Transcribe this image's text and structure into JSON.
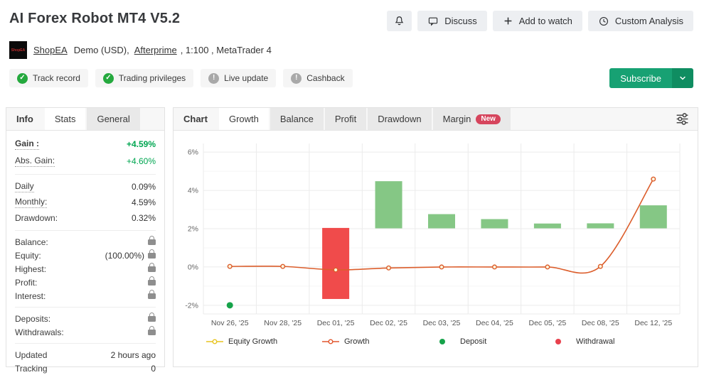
{
  "header": {
    "title": "AI Forex Robot MT4 V5.2"
  },
  "actions": {
    "discuss": "Discuss",
    "add_to_watch": "Add to watch",
    "custom_analysis": "Custom Analysis"
  },
  "account": {
    "logo_text": "ShopEA",
    "name_link": "ShopEA",
    "account_type": "Demo (USD),",
    "broker_link": "Afterprime",
    "leverage_platform": ", 1:100 , MetaTrader 4"
  },
  "verification_badges": [
    {
      "label": "Track record",
      "status": "ok"
    },
    {
      "label": "Trading privileges",
      "status": "ok"
    },
    {
      "label": "Live update",
      "status": "neutral"
    },
    {
      "label": "Cashback",
      "status": "neutral"
    }
  ],
  "subscribe": {
    "label": "Subscribe"
  },
  "stats_panel": {
    "tabs": [
      {
        "label": "Info"
      },
      {
        "label": "Stats",
        "active": true
      },
      {
        "label": "General"
      }
    ],
    "groups": [
      {
        "rows": [
          {
            "label": "Gain :",
            "value": "+4.59%",
            "bold": true,
            "value_bold": true,
            "tooltip": true,
            "value_color": "#00a651"
          },
          {
            "label": "Abs. Gain:",
            "value": "+4.60%",
            "tooltip": true,
            "value_color": "#00a651"
          }
        ]
      },
      {
        "rows": [
          {
            "label": "Daily",
            "value": "0.09%",
            "tooltip": true
          },
          {
            "label": "Monthly:",
            "value": "4.59%",
            "tooltip": true
          },
          {
            "label": "Drawdown:",
            "value": "0.32%"
          }
        ]
      },
      {
        "rows": [
          {
            "label": "Balance:",
            "locked": true
          },
          {
            "label": "Equity:",
            "value": "(100.00%)",
            "locked": true
          },
          {
            "label": "Highest:",
            "locked": true
          },
          {
            "label": "Profit:",
            "locked": true
          },
          {
            "label": "Interest:",
            "locked": true
          }
        ]
      },
      {
        "rows": [
          {
            "label": "Deposits:",
            "locked": true
          },
          {
            "label": "Withdrawals:",
            "locked": true
          }
        ]
      },
      {
        "rows": [
          {
            "label": "Updated",
            "value": "2 hours ago"
          },
          {
            "label": "Tracking",
            "value": "0"
          }
        ]
      }
    ]
  },
  "chart_panel": {
    "tabs": [
      {
        "label": "Chart"
      },
      {
        "label": "Growth",
        "active": true
      },
      {
        "label": "Balance"
      },
      {
        "label": "Profit"
      },
      {
        "label": "Drawdown"
      },
      {
        "label": "Margin",
        "badge": "New"
      }
    ]
  },
  "chart_data": {
    "type": "bar+line",
    "title": "Growth",
    "categories": [
      "Nov 26, '25",
      "Nov 28, '25",
      "Dec 01, '25",
      "Dec 02, '25",
      "Dec 03, '25",
      "Dec 04, '25",
      "Dec 05, '25",
      "Dec 08, '25",
      "Dec 12, '25"
    ],
    "ylim": [
      -2.45,
      6.45
    ],
    "y_ticks_major": [
      6,
      4,
      2,
      0,
      -2
    ],
    "y_ticks_minor": [
      5,
      3,
      1,
      -1
    ],
    "y_tick_suffix": "%",
    "grid": true,
    "bars": [
      {
        "category": "Dec 01, '25",
        "from": -1.67,
        "to": 2.04,
        "kind": "loss"
      },
      {
        "category": "Dec 02, '25",
        "from": 2.02,
        "to": 4.48,
        "kind": "gain"
      },
      {
        "category": "Dec 03, '25",
        "from": 2.02,
        "to": 2.76,
        "kind": "gain"
      },
      {
        "category": "Dec 04, '25",
        "from": 2.02,
        "to": 2.5,
        "kind": "gain"
      },
      {
        "category": "Dec 05, '25",
        "from": 2.02,
        "to": 2.27,
        "kind": "gain"
      },
      {
        "category": "Dec 08, '25",
        "from": 2.02,
        "to": 2.28,
        "kind": "gain"
      },
      {
        "category": "Dec 12, '25",
        "from": 2.02,
        "to": 3.22,
        "kind": "gain"
      }
    ],
    "series": [
      {
        "name": "Growth",
        "type": "line",
        "values": [
          0.03,
          0.03,
          -0.15,
          -0.05,
          0.0,
          0.0,
          0.0,
          0.03,
          4.59
        ]
      },
      {
        "name": "Equity Growth",
        "type": "line",
        "overlaps_growth": true
      }
    ],
    "deposit_markers": [
      {
        "category": "Nov 26, '25",
        "value": -2.0
      }
    ],
    "legend_position": "bottom",
    "legend": [
      {
        "label": "Equity Growth",
        "marker": "line",
        "color": "#e8c420"
      },
      {
        "label": "Growth",
        "marker": "line",
        "color": "#e2572e"
      },
      {
        "label": "Deposit",
        "marker": "dot",
        "color": "#16a34a"
      },
      {
        "label": "Withdrawal",
        "marker": "dot",
        "color": "#e8414d"
      }
    ],
    "colors": {
      "gain_bar": "#85c785",
      "loss_bar": "#f04b4b",
      "growth_line": "#dc5e2c",
      "equity_line": "#e8c420",
      "deposit": "#16a34a",
      "grid_major": "#ebebeb",
      "grid_minor": "#f5f5f5",
      "tick_text": "#666666"
    }
  }
}
